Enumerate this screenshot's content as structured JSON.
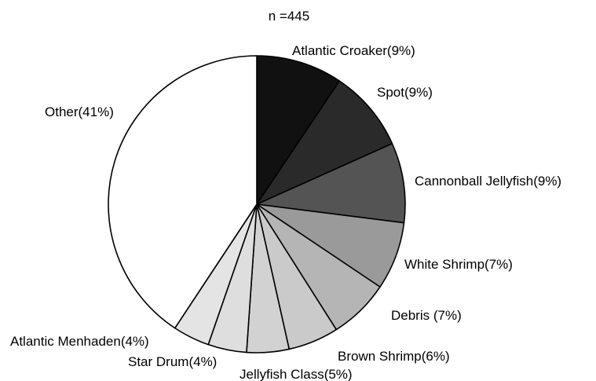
{
  "chart_data": {
    "type": "pie",
    "title": "n =445",
    "start": "12 o'clock",
    "direction": "clockwise",
    "slices": [
      {
        "label": "Atlantic Croaker(9%)",
        "value": 9.4,
        "color": "#111111"
      },
      {
        "label": "Spot(9%)",
        "value": 8.9,
        "color": "#2a2a2a"
      },
      {
        "label": "Cannonball Jellyfish(9%)",
        "value": 8.7,
        "color": "#545454"
      },
      {
        "label": "White Shrimp(7%)",
        "value": 7.4,
        "color": "#9a9a9a"
      },
      {
        "label": "Debris (7%)",
        "value": 6.6,
        "color": "#b5b5b5"
      },
      {
        "label": "Brown Shrimp(6%)",
        "value": 5.5,
        "color": "#cacaca"
      },
      {
        "label": "Jellyfish Class(5%)",
        "value": 4.6,
        "color": "#d2d2d2"
      },
      {
        "label": "Star Drum(4%)",
        "value": 4.2,
        "color": "#dedede"
      },
      {
        "label": "Atlantic Menhaden(4%)",
        "value": 4.0,
        "color": "#e4e4e4"
      },
      {
        "label": "Other(41%)",
        "value": 40.7,
        "color": "#ffffff"
      }
    ]
  }
}
